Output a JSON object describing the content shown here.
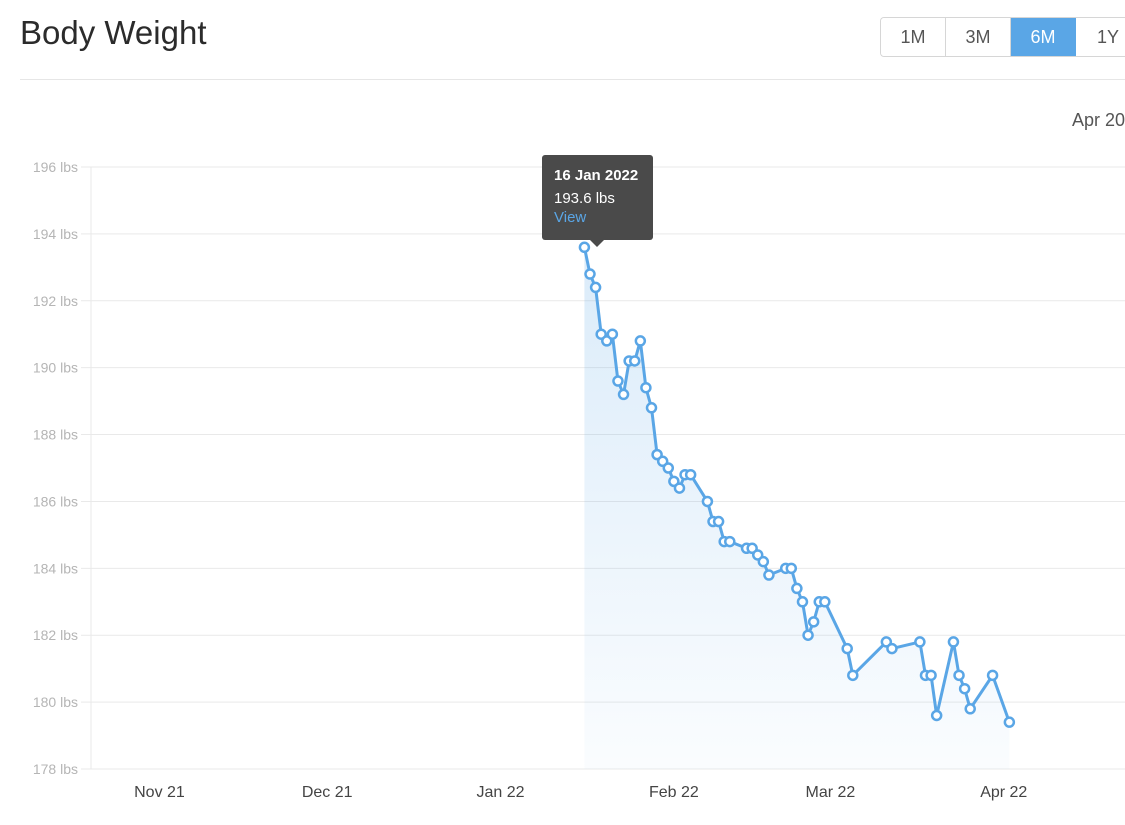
{
  "header": {
    "title": "Body Weight"
  },
  "range_tabs": [
    {
      "label": "1M",
      "active": false
    },
    {
      "label": "3M",
      "active": false
    },
    {
      "label": "6M",
      "active": true
    },
    {
      "label": "1Y",
      "active": false
    }
  ],
  "end_label": "Apr 20",
  "tooltip": {
    "date": "16 Jan 2022",
    "value": "193.6 lbs",
    "link": "View"
  },
  "colors": {
    "accent": "#5aa6e6",
    "line": "#5aa6e6",
    "tooltip_bg": "#4a4a4a",
    "grid": "#e9e9e9"
  },
  "chart_data": {
    "type": "line",
    "y_unit": "lbs",
    "ylim": [
      178,
      196
    ],
    "y_ticks": [
      178,
      180,
      182,
      184,
      186,
      188,
      190,
      192,
      194,
      196
    ],
    "y_tick_labels": [
      "178 lbs",
      "180 lbs",
      "182 lbs",
      "184 lbs",
      "186 lbs",
      "188 lbs",
      "190 lbs",
      "192 lbs",
      "194 lbs",
      "196 lbs"
    ],
    "xlim": [
      "2021-10-16",
      "2022-04-20"
    ],
    "x_ticks": [
      "2021-11-01",
      "2021-12-01",
      "2022-01-01",
      "2022-02-01",
      "2022-03-01",
      "2022-04-01"
    ],
    "x_tick_labels": [
      "Nov 21",
      "Dec 21",
      "Jan 22",
      "Feb 22",
      "Mar 22",
      "Apr 22"
    ],
    "grid": true,
    "series": [
      {
        "points": [
          [
            "2022-01-16",
            193.6
          ],
          [
            "2022-01-17",
            192.8
          ],
          [
            "2022-01-18",
            192.4
          ],
          [
            "2022-01-19",
            191.0
          ],
          [
            "2022-01-20",
            190.8
          ],
          [
            "2022-01-21",
            191.0
          ],
          [
            "2022-01-22",
            189.6
          ],
          [
            "2022-01-23",
            189.2
          ],
          [
            "2022-01-24",
            190.2
          ],
          [
            "2022-01-25",
            190.2
          ],
          [
            "2022-01-26",
            190.8
          ],
          [
            "2022-01-27",
            189.4
          ],
          [
            "2022-01-28",
            188.8
          ],
          [
            "2022-01-29",
            187.4
          ],
          [
            "2022-01-30",
            187.2
          ],
          [
            "2022-01-31",
            187.0
          ],
          [
            "2022-02-01",
            186.6
          ],
          [
            "2022-02-02",
            186.4
          ],
          [
            "2022-02-03",
            186.8
          ],
          [
            "2022-02-04",
            186.8
          ],
          [
            "2022-02-07",
            186.0
          ],
          [
            "2022-02-08",
            185.4
          ],
          [
            "2022-02-09",
            185.4
          ],
          [
            "2022-02-10",
            184.8
          ],
          [
            "2022-02-11",
            184.8
          ],
          [
            "2022-02-14",
            184.6
          ],
          [
            "2022-02-15",
            184.6
          ],
          [
            "2022-02-16",
            184.4
          ],
          [
            "2022-02-17",
            184.2
          ],
          [
            "2022-02-18",
            183.8
          ],
          [
            "2022-02-21",
            184.0
          ],
          [
            "2022-02-22",
            184.0
          ],
          [
            "2022-02-23",
            183.4
          ],
          [
            "2022-02-24",
            183.0
          ],
          [
            "2022-02-25",
            182.0
          ],
          [
            "2022-02-26",
            182.4
          ],
          [
            "2022-02-27",
            183.0
          ],
          [
            "2022-02-28",
            183.0
          ],
          [
            "2022-03-04",
            181.6
          ],
          [
            "2022-03-05",
            180.8
          ],
          [
            "2022-03-11",
            181.8
          ],
          [
            "2022-03-12",
            181.6
          ],
          [
            "2022-03-17",
            181.8
          ],
          [
            "2022-03-18",
            180.8
          ],
          [
            "2022-03-19",
            180.8
          ],
          [
            "2022-03-20",
            179.6
          ],
          [
            "2022-03-23",
            181.8
          ],
          [
            "2022-03-24",
            180.8
          ],
          [
            "2022-03-25",
            180.4
          ],
          [
            "2022-03-26",
            179.8
          ],
          [
            "2022-03-30",
            180.8
          ],
          [
            "2022-04-02",
            179.4
          ]
        ]
      }
    ]
  }
}
